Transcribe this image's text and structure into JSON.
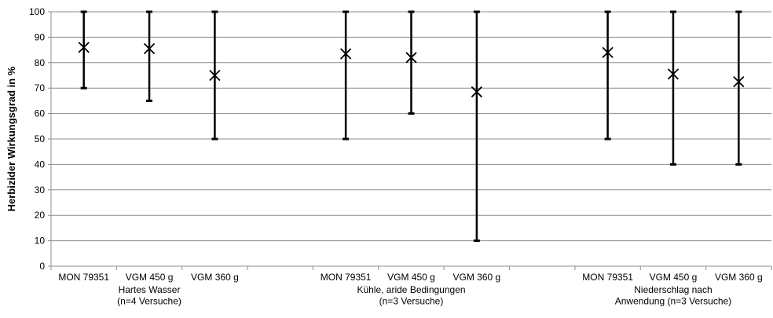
{
  "chart_data": {
    "type": "error-bar",
    "ylabel": "Herbizider Wirkungsgrad in %",
    "ylim": [
      0,
      100
    ],
    "yticks": [
      0,
      10,
      20,
      30,
      40,
      50,
      60,
      70,
      80,
      90,
      100
    ],
    "grid": true,
    "categories": [
      "MON 79351",
      "VGM 450 g",
      "VGM 360 g",
      "",
      "MON 79351",
      "VGM 450 g",
      "VGM 360 g",
      "",
      "MON 79351",
      "VGM 450 g",
      "VGM 360 g"
    ],
    "groups": [
      {
        "label_lines": [
          "Hartes Wasser",
          "(n=4 Versuche)"
        ],
        "start": 0,
        "end": 2
      },
      {
        "label_lines": [
          "Kühle, aride Bedingungen",
          "(n=3 Versuche)"
        ],
        "start": 4,
        "end": 6
      },
      {
        "label_lines": [
          "Niederschlag nach",
          "Anwendung (n=3 Versuche)"
        ],
        "start": 8,
        "end": 10
      }
    ],
    "points": [
      {
        "index": 0,
        "mean": 86,
        "min": 70,
        "max": 100
      },
      {
        "index": 1,
        "mean": 85.5,
        "min": 65,
        "max": 100
      },
      {
        "index": 2,
        "mean": 75,
        "min": 50,
        "max": 100
      },
      {
        "index": 4,
        "mean": 83.5,
        "min": 50,
        "max": 100
      },
      {
        "index": 5,
        "mean": 82,
        "min": 60,
        "max": 100
      },
      {
        "index": 6,
        "mean": 68.5,
        "min": 10,
        "max": 100
      },
      {
        "index": 8,
        "mean": 84,
        "min": 50,
        "max": 100
      },
      {
        "index": 9,
        "mean": 75.5,
        "min": 40,
        "max": 100
      },
      {
        "index": 10,
        "mean": 72.5,
        "min": 40,
        "max": 100
      }
    ]
  }
}
